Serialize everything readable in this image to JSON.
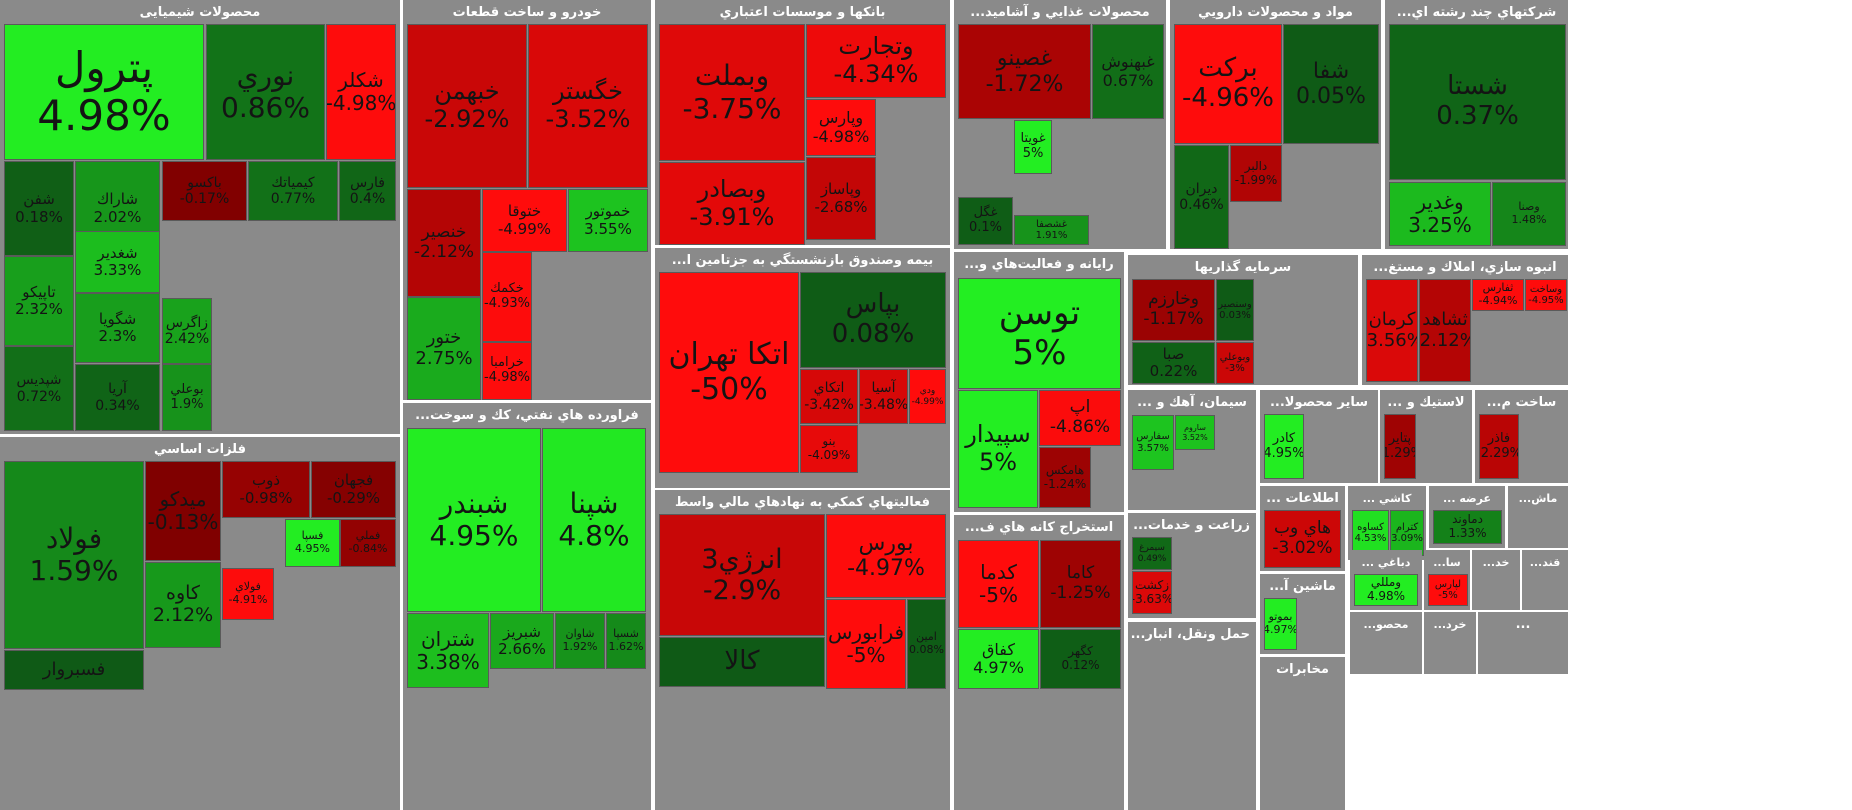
{
  "chart_data": {
    "type": "treemap",
    "value_label": "percent change",
    "color_scale": {
      "up_max": "#22ee22",
      "up_min": "#0f5a1a",
      "flat": "#1f3f16",
      "down_min": "#7a0000",
      "down_max": "#ff1010"
    },
    "sectors": [
      {
        "name": "محصولات شیمیایی",
        "tiles": [
          {
            "symbol": "پترول",
            "change": "4.98%"
          },
          {
            "symbol": "نوري",
            "change": "0.86%"
          },
          {
            "symbol": "شكلر",
            "change": "-4.98%"
          },
          {
            "symbol": "شفن",
            "change": "0.18%"
          },
          {
            "symbol": "شاراك",
            "change": "2.02%"
          },
          {
            "symbol": "باكسو",
            "change": "-0.17%"
          },
          {
            "symbol": "كيمياتك",
            "change": "0.77%"
          },
          {
            "symbol": "فارس",
            "change": "0.4%"
          },
          {
            "symbol": "شغدير",
            "change": "3.33%"
          },
          {
            "symbol": "تاپيكو",
            "change": "2.32%"
          },
          {
            "symbol": "شگويا",
            "change": "2.3%"
          },
          {
            "symbol": "زاگرس",
            "change": "2.42%"
          },
          {
            "symbol": "شپديس",
            "change": "0.72%"
          },
          {
            "symbol": "آريا",
            "change": "0.34%"
          },
          {
            "symbol": "بوعلي",
            "change": "1.9%"
          }
        ]
      },
      {
        "name": "خودرو و ساخت قطعات",
        "tiles": [
          {
            "symbol": "خبهمن",
            "change": "-2.92%"
          },
          {
            "symbol": "خگستر",
            "change": "-3.52%"
          },
          {
            "symbol": "خنصير",
            "change": "-2.12%"
          },
          {
            "symbol": "ختوقا",
            "change": "-4.99%"
          },
          {
            "symbol": "خموتور",
            "change": "3.55%"
          },
          {
            "symbol": "خكمك",
            "change": "-4.93%"
          },
          {
            "symbol": "ختور",
            "change": "2.75%"
          },
          {
            "symbol": "خرامبا",
            "change": "-4.98%"
          }
        ]
      },
      {
        "name": "بانكها و موسسات اعتباري",
        "tiles": [
          {
            "symbol": "وبملت",
            "change": "-3.75%"
          },
          {
            "symbol": "وتجارت",
            "change": "-4.34%"
          },
          {
            "symbol": "وپارس",
            "change": "-4.98%"
          },
          {
            "symbol": "وبصادر",
            "change": "-3.91%"
          },
          {
            "symbol": "وپاساز",
            "change": "-2.68%"
          }
        ]
      },
      {
        "name": "محصولات غذايي و آشاميد...",
        "tiles": [
          {
            "symbol": "غصينو",
            "change": "-1.72%"
          },
          {
            "symbol": "غبهنوش",
            "change": "0.67%"
          },
          {
            "symbol": "غويتا",
            "change": "5%"
          },
          {
            "symbol": "غگل",
            "change": "0.1%"
          },
          {
            "symbol": "غشصفا",
            "change": "1.91%"
          }
        ]
      },
      {
        "name": "مواد و محصولات دارويي",
        "tiles": [
          {
            "symbol": "بركت",
            "change": "-4.96%"
          },
          {
            "symbol": "شفا",
            "change": "0.05%"
          },
          {
            "symbol": "ديران",
            "change": "0.46%"
          },
          {
            "symbol": "دالبر",
            "change": "-1.99%"
          }
        ]
      },
      {
        "name": "شركتهاي چند رشته اي...",
        "tiles": [
          {
            "symbol": "شستا",
            "change": "0.37%"
          },
          {
            "symbol": "وغدير",
            "change": "3.25%"
          },
          {
            "symbol": "وصنا",
            "change": "1.48%"
          }
        ]
      },
      {
        "name": "بيمه وصندوق بازنشستگي به جزتامين ا...",
        "tiles": [
          {
            "symbol": "اتكا تهران",
            "change": "-50%"
          },
          {
            "symbol": "بپاس",
            "change": "0.08%"
          },
          {
            "symbol": "اتكاي",
            "change": "-3.42%"
          },
          {
            "symbol": "آسيا",
            "change": "-3.48%"
          },
          {
            "symbol": "ودي",
            "change": "-4.99%"
          },
          {
            "symbol": "بنو",
            "change": "-4.09%"
          }
        ]
      },
      {
        "name": "رايانه و فعاليت‌هاي و...",
        "tiles": [
          {
            "symbol": "توسن",
            "change": "5%"
          },
          {
            "symbol": "سپيدار",
            "change": "5%"
          },
          {
            "symbol": "اپ",
            "change": "-4.86%"
          },
          {
            "symbol": "هامكس",
            "change": "-1.24%"
          }
        ]
      },
      {
        "name": "سرمايه گذاريها",
        "tiles": [
          {
            "symbol": "وخارزم",
            "change": "-1.17%"
          },
          {
            "symbol": "وسنصير",
            "change": "0.03%"
          },
          {
            "symbol": "صبا",
            "change": "0.22%"
          },
          {
            "symbol": "وبوعلي",
            "change": "-3%"
          }
        ]
      },
      {
        "name": "انبوه سازي، املاك و مستغ...",
        "tiles": [
          {
            "symbol": "كرمان",
            "change": "-3.56%"
          },
          {
            "symbol": "ثشاهد",
            "change": "-2.12%"
          },
          {
            "symbol": "ثفارس",
            "change": "-4.94%"
          },
          {
            "symbol": "وساخت",
            "change": "-4.95%"
          }
        ]
      },
      {
        "name": "فلزات اساسي",
        "tiles": [
          {
            "symbol": "فولاد",
            "change": "1.59%"
          },
          {
            "symbol": "ميدكو",
            "change": "-0.13%"
          },
          {
            "symbol": "ذوب",
            "change": "-0.98%"
          },
          {
            "symbol": "فجهان",
            "change": "-0.29%"
          },
          {
            "symbol": "فسپا",
            "change": "4.95%"
          },
          {
            "symbol": "فملي",
            "change": "-0.84%"
          },
          {
            "symbol": "كاوه",
            "change": "2.12%"
          },
          {
            "symbol": "فولاي",
            "change": "-4.91%"
          },
          {
            "symbol": "فسبروار",
            "change": ""
          }
        ]
      },
      {
        "name": "فراورده هاي نفتي، كك و سوخت...",
        "tiles": [
          {
            "symbol": "شبندر",
            "change": "4.95%"
          },
          {
            "symbol": "شپنا",
            "change": "4.8%"
          },
          {
            "symbol": "شتران",
            "change": "3.38%"
          },
          {
            "symbol": "شبريز",
            "change": "2.66%"
          },
          {
            "symbol": "شاوان",
            "change": "1.92%"
          },
          {
            "symbol": "شسپا",
            "change": "1.62%"
          }
        ]
      },
      {
        "name": "فعاليتهاي كمكي به نهادهاي مالي واسط",
        "tiles": [
          {
            "symbol": "انرژي3",
            "change": "-2.9%"
          },
          {
            "symbol": "بورس",
            "change": "-4.97%"
          },
          {
            "symbol": "فرابورس",
            "change": "-5%"
          },
          {
            "symbol": "امين",
            "change": "0.08%"
          },
          {
            "symbol": "كالا",
            "change": ""
          }
        ]
      },
      {
        "name": "استخراج كانه هاي ف...",
        "tiles": [
          {
            "symbol": "كدما",
            "change": "-5%"
          },
          {
            "symbol": "كاما",
            "change": "-1.25%"
          },
          {
            "symbol": "كفاق",
            "change": "4.97%"
          },
          {
            "symbol": "كگهر",
            "change": "0.12%"
          }
        ]
      },
      {
        "name": "سيمان، آهك و ...",
        "tiles": [
          {
            "symbol": "سفارس",
            "change": "3.57%"
          },
          {
            "symbol": "ساروم",
            "change": "3.52%"
          }
        ]
      },
      {
        "name": "زراعت و خدمات...",
        "tiles": [
          {
            "symbol": "سيمرغ",
            "change": "0.49%"
          },
          {
            "symbol": "زكشت",
            "change": "-3.63%"
          }
        ]
      },
      {
        "name": "حمل ونقل، انبار...",
        "tiles": []
      },
      {
        "name": "ساير محصولا...",
        "tiles": [
          {
            "symbol": "كادر",
            "change": "4.95%"
          }
        ]
      },
      {
        "name": "لاستيك و ...",
        "tiles": [
          {
            "symbol": "پتاير",
            "change": "-1.29%"
          }
        ]
      },
      {
        "name": "ساخت م...",
        "tiles": [
          {
            "symbol": "فاذر",
            "change": "-2.29%"
          }
        ]
      },
      {
        "name": "اطلاعات ...",
        "tiles": [
          {
            "symbol": "هاي وب",
            "change": "-3.02%"
          }
        ]
      },
      {
        "name": "كاشي ...",
        "tiles": [
          {
            "symbol": "كساوه",
            "change": "4.53%"
          },
          {
            "symbol": "كترام",
            "change": "3.09%"
          }
        ]
      },
      {
        "name": "عرضه ...",
        "tiles": [
          {
            "symbol": "دماوند",
            "change": "1.33%"
          }
        ]
      },
      {
        "name": "ماش...",
        "tiles": []
      },
      {
        "name": "ماشين آ...",
        "tiles": [
          {
            "symbol": "بموتو",
            "change": "4.97%"
          }
        ]
      },
      {
        "name": "مخابرات",
        "tiles": []
      },
      {
        "name": "دباغي ...",
        "tiles": [
          {
            "symbol": "ومللي",
            "change": "4.98%"
          }
        ]
      },
      {
        "name": "سا...",
        "tiles": [
          {
            "symbol": "لپارس",
            "change": "-5%"
          }
        ]
      },
      {
        "name": "خد...",
        "tiles": []
      },
      {
        "name": "قند...",
        "tiles": []
      },
      {
        "name": "محصو...",
        "tiles": []
      },
      {
        "name": "خرد...",
        "tiles": []
      },
      {
        "name": "...",
        "tiles": []
      }
    ]
  }
}
